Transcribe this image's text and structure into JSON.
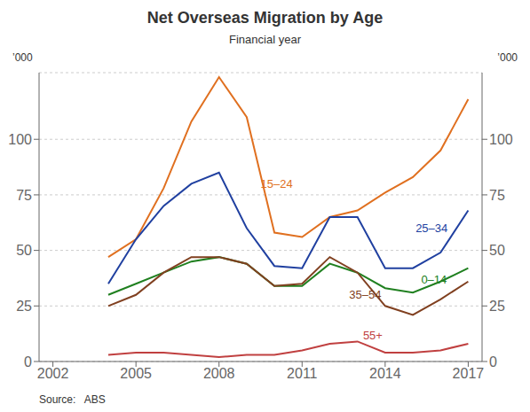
{
  "chart_data": {
    "type": "line",
    "title": "Net Overseas Migration by Age",
    "subtitle": "Financial year",
    "ylabel": "’000",
    "y2label": "’000",
    "source": "Source:   ABS",
    "x": [
      2004,
      2005,
      2006,
      2007,
      2008,
      2009,
      2010,
      2011,
      2012,
      2013,
      2014,
      2015,
      2016,
      2017
    ],
    "xlim": [
      2001.5,
      2017.5
    ],
    "xticks": [
      2002,
      2005,
      2008,
      2011,
      2014,
      2017
    ],
    "ylim": [
      0,
      130
    ],
    "yticks": [
      0,
      25,
      50,
      75,
      100
    ],
    "y2lim": [
      0,
      130
    ],
    "y2ticks": [
      0,
      25,
      50,
      75,
      100
    ],
    "grid": true,
    "series": [
      {
        "name": "15–24",
        "color": "#E07020",
        "values": [
          47,
          55,
          78,
          108,
          128,
          110,
          58,
          56,
          65,
          68,
          76,
          83,
          95,
          118
        ]
      },
      {
        "name": "25–34",
        "color": "#2040A0",
        "values": [
          35,
          55,
          70,
          80,
          85,
          60,
          43,
          42,
          65,
          65,
          42,
          42,
          49,
          68
        ]
      },
      {
        "name": "0–14",
        "color": "#208020",
        "values": [
          30,
          35,
          40,
          45,
          47,
          44,
          34,
          34,
          44,
          40,
          33,
          31,
          36,
          42
        ]
      },
      {
        "name": "35–54",
        "color": "#804020",
        "values": [
          25,
          30,
          40,
          47,
          47,
          44,
          34,
          35,
          47,
          40,
          25,
          21,
          28,
          36
        ]
      },
      {
        "name": "55+",
        "color": "#C04040",
        "values": [
          3,
          4,
          4,
          3,
          2,
          3,
          3,
          5,
          8,
          9,
          4,
          4,
          5,
          8
        ]
      }
    ],
    "annotations": [
      {
        "text": "15–24",
        "x": 2009.5,
        "y": 80,
        "color": "#E07020"
      },
      {
        "text": "25–34",
        "x": 2015.1,
        "y": 60,
        "color": "#2040A0"
      },
      {
        "text": "0–14",
        "x": 2015.3,
        "y": 37,
        "color": "#208020"
      },
      {
        "text": "35–54",
        "x": 2012.7,
        "y": 30,
        "color": "#804020"
      },
      {
        "text": "55+",
        "x": 2013.2,
        "y": 12,
        "color": "#C04040"
      }
    ]
  }
}
